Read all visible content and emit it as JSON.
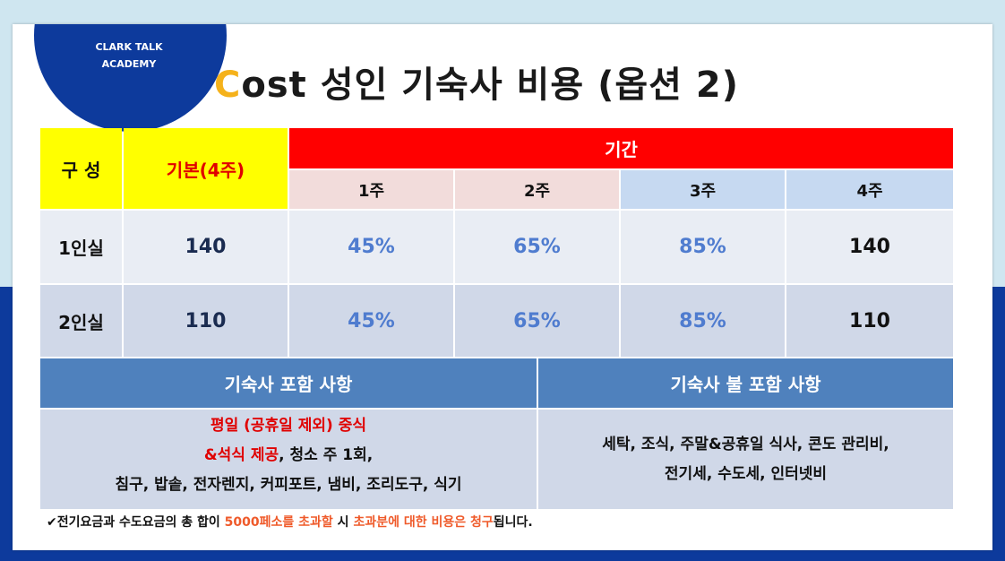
{
  "logo": {
    "line1": "CLARK TALK",
    "line2": "ACADEMY"
  },
  "title": {
    "accent_letter": "C",
    "rest": "ost 성인 기숙사 비용 (옵션 2)"
  },
  "table": {
    "header_group": "구 성",
    "header_base": "기본(4주)",
    "header_period": "기간",
    "weeks": [
      "1주",
      "2주",
      "3주",
      "4주"
    ],
    "rows": [
      {
        "label": "1인실",
        "base": "140",
        "w1": "45%",
        "w2": "65%",
        "w3": "85%",
        "w4": "140"
      },
      {
        "label": "2인실",
        "base": "110",
        "w1": "45%",
        "w2": "65%",
        "w3": "85%",
        "w4": "110"
      }
    ]
  },
  "included": {
    "title": "기숙사 포함 사항",
    "line1": "평일 (공휴일 제외) 중식",
    "line2_red": "&석식 제공",
    "line2_rest": ", 청소 주 1회,",
    "line3": "침구, 밥솥, 전자렌지, 커피포트, 냄비, 조리도구, 식기"
  },
  "excluded": {
    "title": "기숙사 불 포함 사항",
    "line1": "세탁, 조식, 주말&공휴일 식사, 콘도 관리비,",
    "line2": "전기세, 수도세, 인터넷비"
  },
  "footnote": {
    "p1": "✔전기요금과 수도요금의 총 합이 ",
    "p2": "5000페소를 초과할",
    "p3": " 시 ",
    "p4": "초과분에 대한 비용은 청구",
    "p5": "됩니다."
  },
  "colors": {
    "navy": "#0d3a9c",
    "yellow": "#ffff00",
    "red": "#ff0000",
    "pink": "#f2dcdb",
    "lightblue": "#c6d9f1",
    "steelblue": "#4f81bd",
    "row_light": "#e9edf4",
    "row_dark": "#d0d8e8",
    "accent": "#f5b21b"
  }
}
